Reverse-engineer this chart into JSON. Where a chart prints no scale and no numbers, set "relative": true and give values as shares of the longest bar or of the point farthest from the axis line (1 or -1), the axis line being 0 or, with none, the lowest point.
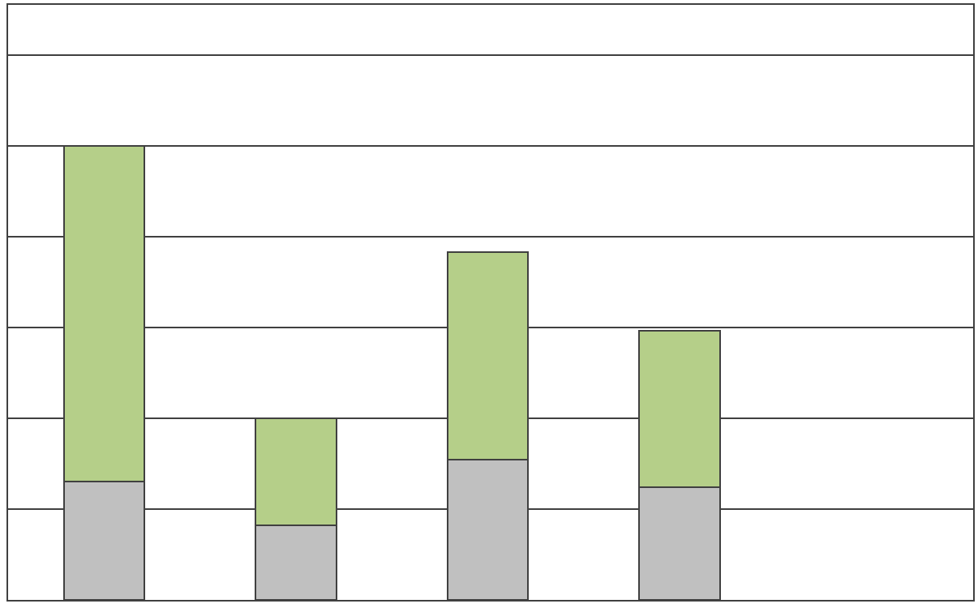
{
  "chart_data": {
    "type": "bar",
    "stacked": true,
    "relative": true,
    "grid": "y",
    "categories": [
      null,
      null,
      null,
      null
    ],
    "series": [
      {
        "color": "#c0c0c0",
        "values": [
          0.26,
          0.165,
          0.309,
          0.248
        ]
      },
      {
        "color": "#b5cf89",
        "values": [
          0.74,
          0.234,
          0.457,
          0.345
        ]
      }
    ]
  }
}
